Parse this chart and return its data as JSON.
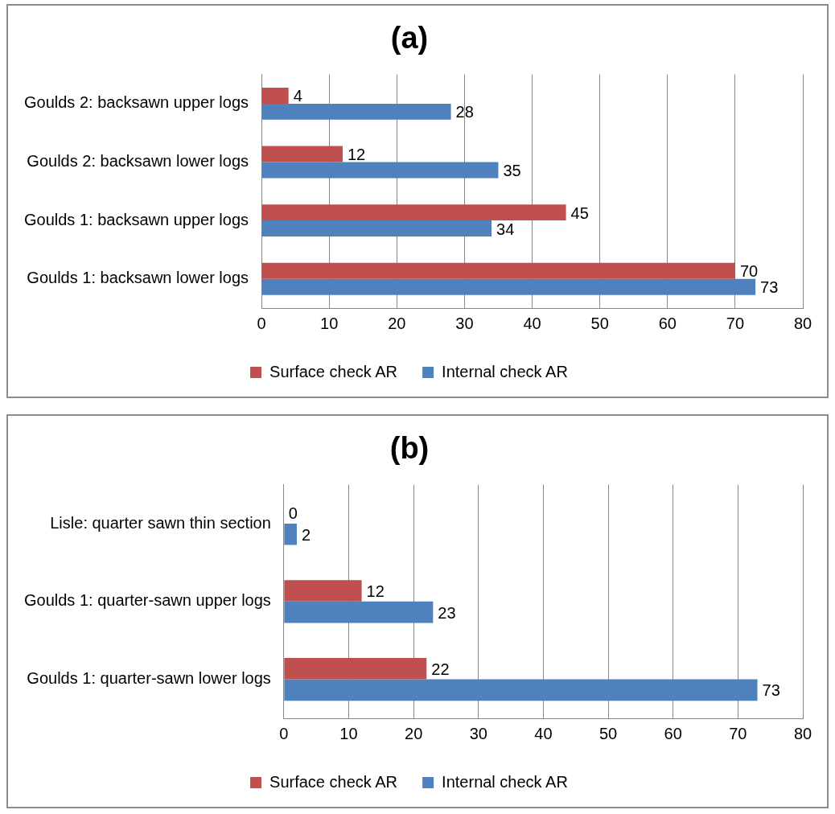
{
  "chart_data": [
    {
      "type": "bar",
      "orientation": "horizontal",
      "title": "(a)",
      "categories": [
        "Goulds 2: backsawn upper logs",
        "Goulds 2: backsawn lower logs",
        "Goulds 1: backsawn upper logs",
        "Goulds 1: backsawn lower logs"
      ],
      "series": [
        {
          "name": "Surface check AR",
          "color": "#c0504d",
          "values": [
            4,
            12,
            45,
            70
          ]
        },
        {
          "name": "Internal check AR",
          "color": "#4f81bd",
          "values": [
            28,
            35,
            34,
            73
          ]
        }
      ],
      "xlim": [
        0,
        80
      ],
      "xticks": [
        0,
        10,
        20,
        30,
        40,
        50,
        60,
        70,
        80
      ],
      "grid": "x",
      "legend": "bottom",
      "data_labels": true
    },
    {
      "type": "bar",
      "orientation": "horizontal",
      "title": "(b)",
      "categories": [
        "Lisle: quarter sawn thin section",
        "Goulds 1: quarter-sawn upper logs",
        "Goulds 1: quarter-sawn lower logs"
      ],
      "series": [
        {
          "name": "Surface check AR",
          "color": "#c0504d",
          "values": [
            0,
            12,
            22
          ]
        },
        {
          "name": "Internal check AR",
          "color": "#4f81bd",
          "values": [
            2,
            23,
            73
          ]
        }
      ],
      "xlim": [
        0,
        80
      ],
      "xticks": [
        0,
        10,
        20,
        30,
        40,
        50,
        60,
        70,
        80
      ],
      "grid": "x",
      "legend": "bottom",
      "data_labels": true
    }
  ]
}
